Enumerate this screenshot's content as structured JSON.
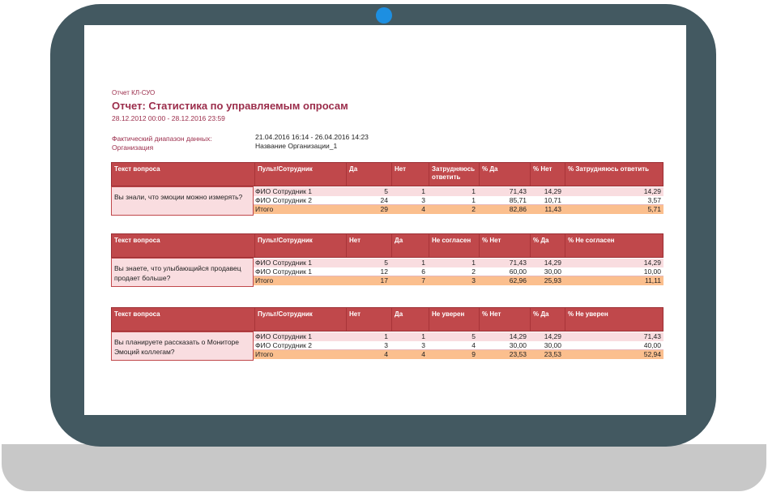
{
  "report": {
    "code": "Отчет КЛ-СУО",
    "title": "Отчет: Статистика по управляемым опросам",
    "date_range": "28.12.2012 00:00 - 28.12.2016 23:59",
    "actual_range_label": "Фактический диапазон данных:",
    "actual_range_value": "21.04.2016 16:14 - 26.04.2016 14:23",
    "org_label": "Организация",
    "org_value": "Название Организации_1"
  },
  "tables": [
    {
      "headers": [
        "Текст вопроса",
        "Пульт/Сотрудник",
        "Да",
        "Нет",
        "Затрудняюсь ответить",
        "% Да",
        "% Нет",
        "% Затрудняюсь ответить"
      ],
      "question": "Вы знали, что эмоции можно измерять?",
      "rows": [
        {
          "label": "ФИО Сотрудник 1",
          "v": [
            "5",
            "1",
            "1",
            "71,43",
            "14,29",
            "14,29"
          ]
        },
        {
          "label": "ФИО Сотрудник 2",
          "v": [
            "24",
            "3",
            "1",
            "85,71",
            "10,71",
            "3,57"
          ]
        }
      ],
      "total": {
        "label": "Итого",
        "v": [
          "29",
          "4",
          "2",
          "82,86",
          "11,43",
          "5,71"
        ]
      }
    },
    {
      "headers": [
        "Текст вопроса",
        "Пульт/Сотрудник",
        "Нет",
        "Да",
        "Не согласен",
        "% Нет",
        "% Да",
        "% Не согласен"
      ],
      "question": "Вы знаете, что улыбающийся продавец продает больше?",
      "rows": [
        {
          "label": "ФИО Сотрудник 1",
          "v": [
            "5",
            "1",
            "1",
            "71,43",
            "14,29",
            "14,29"
          ]
        },
        {
          "label": "ФИО Сотрудник 1",
          "v": [
            "12",
            "6",
            "2",
            "60,00",
            "30,00",
            "10,00"
          ]
        }
      ],
      "total": {
        "label": "Итого",
        "v": [
          "17",
          "7",
          "3",
          "62,96",
          "25,93",
          "11,11"
        ]
      }
    },
    {
      "headers": [
        "Текст вопроса",
        "Пульт/Сотрудник",
        "Нет",
        "Да",
        "Не уверен",
        "% Нет",
        "% Да",
        "% Не уверен"
      ],
      "question": "Вы планируете рассказать о Мониторе Эмоций коллегам?",
      "rows": [
        {
          "label": "ФИО Сотрудник 1",
          "v": [
            "1",
            "1",
            "5",
            "14,29",
            "14,29",
            "71,43"
          ]
        },
        {
          "label": "ФИО Сотрудник 2",
          "v": [
            "3",
            "3",
            "4",
            "30,00",
            "30,00",
            "40,00"
          ]
        }
      ],
      "total": {
        "label": "Итого",
        "v": [
          "4",
          "4",
          "9",
          "23,53",
          "23,53",
          "52,94"
        ]
      }
    }
  ]
}
